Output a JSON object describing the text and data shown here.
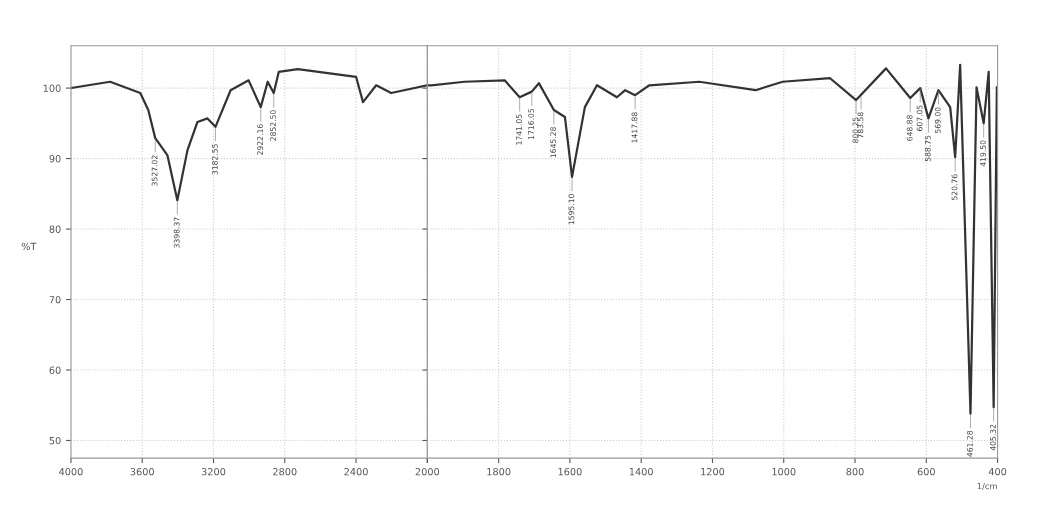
{
  "chart_data": [
    {
      "type": "line",
      "ylabel": "%T",
      "x": [
        4000,
        3780,
        3611,
        3566,
        3527,
        3459,
        3403,
        3346,
        3290,
        3234,
        3189,
        3104,
        3003,
        2935,
        2896,
        2862,
        2834,
        2727,
        2400,
        2361,
        2287,
        2203,
        2000
      ],
      "series": [
        {
          "color": "#333333",
          "values": [
            100,
            100.9,
            99.3,
            96.9,
            92.9,
            90.5,
            84.1,
            91.2,
            95.2,
            95.7,
            94.5,
            99.7,
            101.1,
            97.3,
            100.9,
            99.3,
            102.3,
            102.7,
            101.6,
            98,
            100.4,
            99.3,
            100.4
          ]
        }
      ],
      "xlim": [
        4000,
        2000
      ],
      "xticks": [
        4000,
        3600,
        3200,
        2800,
        2400,
        2000
      ],
      "ylim": [
        47.5,
        106
      ],
      "yticks": [
        50,
        60,
        70,
        80,
        90,
        100
      ],
      "grid": true,
      "marker": "none",
      "line_style": "solid",
      "annotations": [
        {
          "text": "3527.02",
          "x": 3527,
          "y": 92.9
        },
        {
          "text": "3398.37",
          "x": 3403,
          "y": 84.1
        },
        {
          "text": "3182.55",
          "x": 3189,
          "y": 94.5
        },
        {
          "text": "2922.16",
          "x": 2935,
          "y": 97.3
        },
        {
          "text": "2852.50",
          "x": 2862,
          "y": 99.3
        }
      ]
    },
    {
      "type": "line",
      "xlabel": "1/cm",
      "x": [
        2000,
        1989,
        1896,
        1783,
        1741,
        1707,
        1687,
        1645,
        1614,
        1594,
        1558,
        1524,
        1468,
        1445,
        1417,
        1377,
        1237,
        1079,
        1003,
        870,
        797,
        713,
        645,
        617,
        594,
        566,
        533,
        519,
        505,
        476,
        459,
        439,
        425,
        411,
        402
      ],
      "series": [
        {
          "color": "#333333",
          "values": [
            100.4,
            100.4,
            100.9,
            101.1,
            98.7,
            99.5,
            100.7,
            96.9,
            95.9,
            87.4,
            97.3,
            100.4,
            98.7,
            99.7,
            99,
            100.4,
            100.9,
            99.7,
            100.9,
            101.4,
            98.3,
            102.8,
            98.6,
            100,
            95.7,
            99.7,
            97.3,
            90.2,
            103.3,
            53.8,
            100.1,
            95,
            102.3,
            54.7,
            100.1
          ]
        }
      ],
      "xlim": [
        2000,
        400
      ],
      "xticks": [
        {
          "value": 2000,
          "label": null
        },
        1800,
        1600,
        1400,
        1200,
        1000,
        800,
        600,
        400
      ],
      "ylim": [
        47.5,
        106
      ],
      "yticks": [
        50,
        60,
        70,
        80,
        90,
        100
      ],
      "tick_labels": "x",
      "grid": true,
      "marker": "none",
      "line_style": "solid",
      "annotations": [
        {
          "text": "1741.05",
          "x": 1741,
          "y": 98.7
        },
        {
          "text": "1716.05",
          "x": 1707,
          "y": 99.5
        },
        {
          "text": "1645.28",
          "x": 1645,
          "y": 96.9
        },
        {
          "text": "1595.10",
          "x": 1594,
          "y": 87.4
        },
        {
          "text": "1417.88",
          "x": 1417,
          "y": 99
        },
        {
          "text": "800.25",
          "x": 797,
          "y": 98.3
        },
        {
          "text": "783.58",
          "x": 783,
          "y": 99
        },
        {
          "text": "648.88",
          "x": 645,
          "y": 98.6
        },
        {
          "text": "607.05",
          "x": 617,
          "y": 100
        },
        {
          "text": "588.75",
          "x": 594,
          "y": 95.7
        },
        {
          "text": "569.00",
          "x": 566,
          "y": 99.7
        },
        {
          "text": "520.76",
          "x": 519,
          "y": 90.2
        },
        {
          "text": "461.28",
          "x": 476,
          "y": 53.8
        },
        {
          "text": "419.50",
          "x": 439,
          "y": 95
        },
        {
          "text": "405.32",
          "x": 411,
          "y": 54.7
        }
      ]
    }
  ]
}
